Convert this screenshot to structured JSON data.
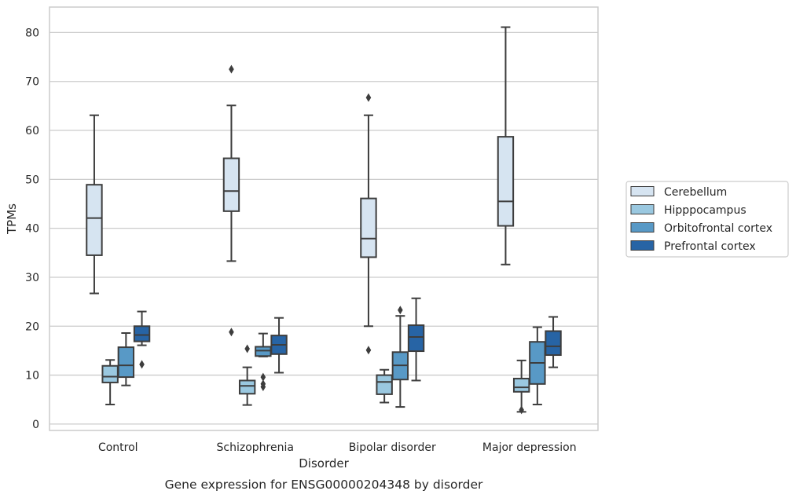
{
  "chart_data": {
    "type": "boxplot",
    "title": "Gene expression for ENSG00000204348 by disorder",
    "xlabel": "Disorder",
    "ylabel": "TPMs",
    "ylim": [
      -1.3,
      85.2
    ],
    "yticks": [
      0,
      10,
      20,
      30,
      40,
      50,
      60,
      70,
      80
    ],
    "grid": "horizontal",
    "legend_position": "right",
    "categories": [
      "Control",
      "Schizophrenia",
      "Bipolar disorder",
      "Major depression"
    ],
    "series": [
      {
        "name": "Cerebellum",
        "color": "#d6e4f1",
        "boxes": [
          {
            "whisker_low": 26.7,
            "q1": 34.5,
            "median": 42.1,
            "q3": 48.9,
            "whisker_high": 63.1,
            "outliers": []
          },
          {
            "whisker_low": 33.3,
            "q1": 43.5,
            "median": 47.6,
            "q3": 54.3,
            "whisker_high": 65.1,
            "outliers": [
              18.8,
              72.5
            ]
          },
          {
            "whisker_low": 20.0,
            "q1": 34.1,
            "median": 37.9,
            "q3": 46.1,
            "whisker_high": 63.1,
            "outliers": [
              15.1,
              66.7
            ]
          },
          {
            "whisker_low": 32.6,
            "q1": 40.5,
            "median": 45.5,
            "q3": 58.7,
            "whisker_high": 81.1,
            "outliers": []
          }
        ]
      },
      {
        "name": "Hipppocampus",
        "color": "#9ac8e0",
        "boxes": [
          {
            "whisker_low": 4.0,
            "q1": 8.5,
            "median": 9.7,
            "q3": 11.9,
            "whisker_high": 13.1,
            "outliers": []
          },
          {
            "whisker_low": 3.9,
            "q1": 6.2,
            "median": 7.8,
            "q3": 8.9,
            "whisker_high": 11.6,
            "outliers": [
              15.4
            ]
          },
          {
            "whisker_low": 4.4,
            "q1": 6.1,
            "median": 8.6,
            "q3": 10.0,
            "whisker_high": 11.1,
            "outliers": []
          },
          {
            "whisker_low": 2.5,
            "q1": 6.6,
            "median": 7.5,
            "q3": 9.3,
            "whisker_high": 13.0,
            "outliers": [
              2.9
            ]
          }
        ]
      },
      {
        "name": "Orbitofrontal cortex",
        "color": "#5899c6",
        "boxes": [
          {
            "whisker_low": 7.9,
            "q1": 9.6,
            "median": 12.0,
            "q3": 15.7,
            "whisker_high": 18.6,
            "outliers": []
          },
          {
            "whisker_low": 13.8,
            "q1": 13.9,
            "median": 15.0,
            "q3": 15.8,
            "whisker_high": 18.5,
            "outliers": [
              7.6,
              8.2,
              9.6
            ]
          },
          {
            "whisker_low": 3.5,
            "q1": 9.1,
            "median": 12.0,
            "q3": 14.7,
            "whisker_high": 22.1,
            "outliers": [
              23.3
            ]
          },
          {
            "whisker_low": 4.0,
            "q1": 8.2,
            "median": 12.5,
            "q3": 16.8,
            "whisker_high": 19.8,
            "outliers": []
          }
        ]
      },
      {
        "name": "Prefrontal cortex",
        "color": "#2764a5",
        "boxes": [
          {
            "whisker_low": 16.1,
            "q1": 16.9,
            "median": 18.2,
            "q3": 20.0,
            "whisker_high": 23.0,
            "outliers": [
              12.2
            ]
          },
          {
            "whisker_low": 10.5,
            "q1": 14.3,
            "median": 16.2,
            "q3": 18.1,
            "whisker_high": 21.7,
            "outliers": []
          },
          {
            "whisker_low": 8.9,
            "q1": 14.9,
            "median": 17.8,
            "q3": 20.2,
            "whisker_high": 25.7,
            "outliers": []
          },
          {
            "whisker_low": 11.6,
            "q1": 14.1,
            "median": 15.9,
            "q3": 19.0,
            "whisker_high": 21.9,
            "outliers": []
          }
        ]
      }
    ]
  }
}
